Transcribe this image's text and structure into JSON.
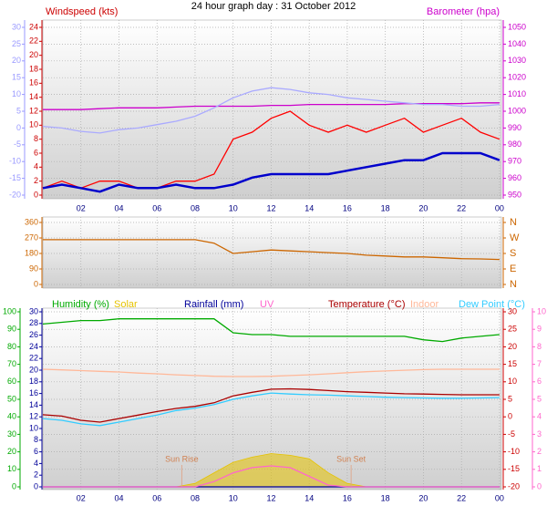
{
  "chart_data": [
    {
      "type": "line",
      "title": "24 hour graph day : 31 October 2012",
      "x": [
        0,
        1,
        2,
        3,
        4,
        5,
        6,
        7,
        8,
        9,
        10,
        11,
        12,
        13,
        14,
        15,
        16,
        17,
        18,
        19,
        20,
        21,
        22,
        23,
        24
      ],
      "xlim": [
        0,
        24.1
      ],
      "xticks": [
        {
          "value": 2,
          "label": "02"
        },
        {
          "value": 4,
          "label": "04"
        },
        {
          "value": 6,
          "label": "06"
        },
        {
          "value": 8,
          "label": "08"
        },
        10,
        12,
        14,
        16,
        18,
        20,
        22,
        {
          "value": 24,
          "label": "00"
        }
      ],
      "grid": true,
      "axes": [
        {
          "color": "#9999ff",
          "ylim": [
            -20,
            30
          ],
          "yticks": [
            -20,
            -15,
            -10,
            -5,
            0,
            5,
            10,
            15,
            20,
            25,
            30
          ]
        },
        {
          "label": "Windspeed (kts)",
          "color": "#cc0000",
          "ylim": [
            0,
            24
          ],
          "yticks": [
            0,
            2,
            4,
            6,
            8,
            10,
            12,
            14,
            16,
            18,
            20,
            22,
            24
          ]
        },
        {
          "label": "Barometer (hpa)",
          "color": "#cc00cc",
          "ylim": [
            950,
            1050
          ],
          "yticks": [
            950,
            960,
            970,
            980,
            990,
            1000,
            1010,
            1020,
            1030,
            1040,
            1050
          ]
        }
      ],
      "series": [
        {
          "color": "#ff0000",
          "axis": 1,
          "values": [
            1,
            2,
            1,
            2,
            2,
            1,
            1,
            2,
            2,
            3,
            8,
            9,
            11,
            12,
            10,
            9,
            10,
            9,
            10,
            11,
            9,
            10,
            11,
            9,
            8
          ]
        },
        {
          "color": "#0000cc",
          "axis": 1,
          "values": [
            1,
            1.5,
            1,
            0.5,
            1.5,
            1,
            1,
            1.5,
            1,
            1,
            1.5,
            2.5,
            3,
            3,
            3,
            3,
            3.5,
            4,
            4.5,
            5,
            5,
            6,
            6,
            6,
            5
          ]
        },
        {
          "color": "#cc00cc",
          "axis": 2,
          "values": [
            1001,
            1001,
            1001,
            1001.5,
            1002,
            1002,
            1002,
            1002.5,
            1003,
            1003,
            1003,
            1003,
            1003.5,
            1003.5,
            1004,
            1004,
            1004,
            1004,
            1004,
            1004.5,
            1004.5,
            1004.5,
            1004.5,
            1005,
            1005
          ]
        },
        {
          "color": "#aaaaff",
          "axis": 0,
          "values": [
            0.5,
            0,
            -1,
            -1.5,
            -0.5,
            0,
            1,
            2,
            3.5,
            6,
            9,
            11,
            12,
            11.5,
            10.5,
            10,
            9,
            8.5,
            8,
            7.5,
            7,
            7,
            6.5,
            6.5,
            7
          ]
        }
      ]
    },
    {
      "type": "line",
      "x": [
        0,
        1,
        2,
        3,
        4,
        5,
        6,
        7,
        8,
        9,
        10,
        11,
        12,
        13,
        14,
        15,
        16,
        17,
        18,
        19,
        20,
        21,
        22,
        23,
        24
      ],
      "xlim": [
        0,
        24.1
      ],
      "grid": true,
      "axes": [
        {
          "color": "#cc6600",
          "ylim": [
            0,
            360
          ],
          "yticks": [
            0,
            90,
            180,
            270,
            360
          ]
        },
        {
          "color": "#cc6600",
          "ylim": [
            0,
            360
          ],
          "yticks": [
            {
              "value": 0,
              "label": "N"
            },
            {
              "value": 90,
              "label": "E"
            },
            {
              "value": 180,
              "label": "S"
            },
            {
              "value": 270,
              "label": "W"
            },
            {
              "value": 360,
              "label": "N"
            }
          ]
        }
      ],
      "series": [
        {
          "color": "#cc6600",
          "axis": 0,
          "values": [
            260,
            260,
            260,
            260,
            260,
            260,
            260,
            260,
            260,
            240,
            180,
            190,
            200,
            195,
            190,
            185,
            180,
            170,
            165,
            160,
            160,
            155,
            150,
            148,
            145
          ]
        }
      ]
    },
    {
      "type": "line",
      "x": [
        0,
        1,
        2,
        3,
        4,
        5,
        6,
        7,
        8,
        9,
        10,
        11,
        12,
        13,
        14,
        15,
        16,
        17,
        18,
        19,
        20,
        21,
        22,
        23,
        24
      ],
      "xlim": [
        0,
        24.1
      ],
      "xticks": [
        {
          "value": 2,
          "label": "02"
        },
        {
          "value": 4,
          "label": "04"
        },
        {
          "value": 6,
          "label": "06"
        },
        {
          "value": 8,
          "label": "08"
        },
        10,
        12,
        14,
        16,
        18,
        20,
        22,
        {
          "value": 24,
          "label": "00"
        }
      ],
      "grid": true,
      "axes": [
        {
          "color": "#00aa00",
          "ylim": [
            0,
            100
          ],
          "yticks": [
            0,
            10,
            20,
            30,
            40,
            50,
            60,
            70,
            80,
            90,
            100
          ]
        },
        {
          "color": "#000099",
          "ylim": [
            0,
            30
          ],
          "yticks": [
            0,
            2,
            4,
            6,
            8,
            10,
            12,
            14,
            16,
            18,
            20,
            22,
            24,
            26,
            28,
            30
          ]
        },
        {
          "color": "#cc0000",
          "ylim": [
            -20,
            30
          ],
          "yticks": [
            -20,
            -15,
            -10,
            -5,
            0,
            5,
            10,
            15,
            20,
            25,
            30
          ]
        },
        {
          "color": "#ff66cc",
          "ylim": [
            0,
            10
          ],
          "yticks": [
            0,
            1,
            2,
            3,
            4,
            5,
            6,
            7,
            8,
            9,
            10
          ]
        }
      ],
      "series": [
        {
          "name": "Humidity (%)",
          "color": "#00aa00",
          "axis": 0,
          "values": [
            93,
            94,
            95,
            95,
            96,
            96,
            96,
            96,
            96,
            96,
            88,
            87,
            87,
            86,
            86,
            86,
            86,
            86,
            86,
            86,
            84,
            83,
            85,
            86,
            87
          ]
        },
        {
          "name": "Solar",
          "color": "#e6c300",
          "axis": 0,
          "type": "area",
          "values": [
            0,
            0,
            0,
            0,
            0,
            0,
            0,
            0,
            2,
            8,
            14,
            17,
            19,
            18,
            16,
            8,
            2,
            0,
            0,
            0,
            0,
            0,
            0,
            0,
            0
          ]
        },
        {
          "name": "Rainfall (mm)",
          "color": "#000099",
          "axis": 1,
          "values": [
            0,
            0,
            0,
            0,
            0,
            0,
            0,
            0,
            0,
            0,
            0,
            0,
            0,
            0,
            0,
            0,
            0,
            0,
            0,
            0,
            0,
            0,
            0,
            0,
            0
          ]
        },
        {
          "name": "UV",
          "color": "#ff66cc",
          "axis": 3,
          "values": [
            0,
            0,
            0,
            0,
            0,
            0,
            0,
            0,
            0,
            0.3,
            0.8,
            1.1,
            1.2,
            1.1,
            0.6,
            0.1,
            0,
            0,
            0,
            0,
            0,
            0,
            0,
            0,
            0
          ]
        },
        {
          "name": "Temperature (°C)",
          "color": "#aa0000",
          "axis": 2,
          "values": [
            0.6,
            0.2,
            -1,
            -1.5,
            -0.5,
            0.5,
            1.5,
            2.4,
            3,
            4,
            6,
            7,
            7.9,
            8,
            7.8,
            7.5,
            7.2,
            7,
            6.8,
            6.6,
            6.5,
            6.4,
            6.3,
            6.3,
            6.3
          ]
        },
        {
          "name": "Indoor",
          "color": "#ffb899",
          "axis": 2,
          "values": [
            13.6,
            13.4,
            13.2,
            13,
            12.8,
            12.5,
            12.3,
            12,
            11.8,
            11.6,
            11.5,
            11.5,
            11.6,
            11.8,
            12,
            12.3,
            12.6,
            12.9,
            13.1,
            13.3,
            13.5,
            13.6,
            13.6,
            13.6,
            13.6
          ]
        },
        {
          "name": "Dew Point (°C)",
          "color": "#33ccff",
          "axis": 2,
          "values": [
            -0.5,
            -1,
            -2,
            -2.5,
            -1.5,
            -0.5,
            0.5,
            1.8,
            2.5,
            3.5,
            5,
            6,
            6.8,
            6.5,
            6.3,
            6.2,
            6,
            5.8,
            5.6,
            5.5,
            5.4,
            5.3,
            5.3,
            5.4,
            5.5
          ]
        }
      ],
      "annotations": [
        {
          "text": "Sun Rise",
          "x": 7.3
        },
        {
          "text": "Sun Set",
          "x": 16.2
        }
      ]
    }
  ]
}
